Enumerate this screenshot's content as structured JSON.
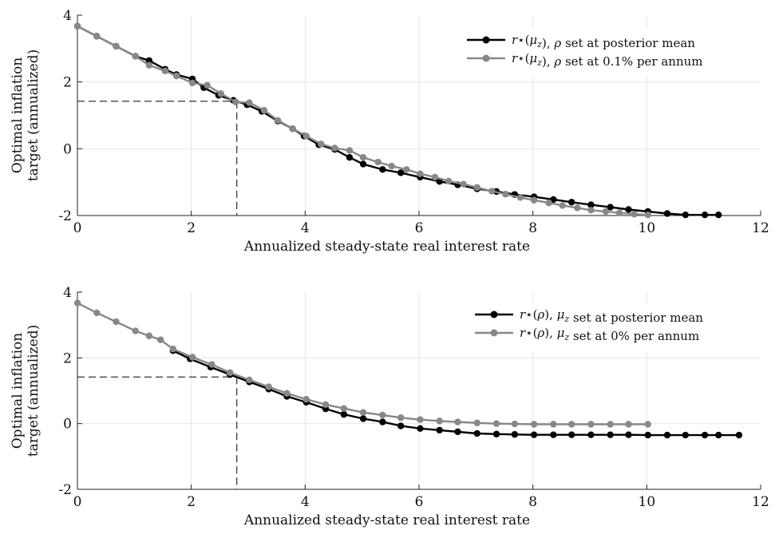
{
  "chart_data": [
    {
      "type": "line",
      "xlabel": "Annualized steady-state real interest rate",
      "ylabel": [
        "Optimal inflation",
        "target (annualized)"
      ],
      "xlim": [
        0,
        12
      ],
      "ylim": [
        -2,
        4
      ],
      "xticks": [
        0,
        2,
        4,
        6,
        8,
        10,
        12
      ],
      "yticks": [
        -2,
        0,
        2,
        4
      ],
      "xtick_labels": [
        "0",
        "2",
        "4",
        "6",
        "8",
        "10",
        "12"
      ],
      "ytick_labels": [
        "-2",
        "0",
        "2",
        "4"
      ],
      "grid": true,
      "legend_position": "top-right",
      "reference_point": {
        "x": 2.8,
        "y": 1.42
      },
      "series": [
        {
          "name": "r⋆(μz), ρ set at posterior mean",
          "color": "#000000",
          "x": [
            0,
            0.34,
            0.68,
            1.02,
            1.26,
            1.54,
            1.74,
            2.02,
            2.22,
            2.48,
            2.74,
            2.98,
            3.24,
            3.52,
            3.78,
            3.98,
            4.24,
            4.52,
            4.78,
            5.02,
            5.36,
            5.68,
            6.02,
            6.36,
            6.68,
            7.02,
            7.36,
            7.68,
            8.02,
            8.36,
            8.68,
            9.02,
            9.36,
            9.68,
            10.02,
            10.36,
            10.68,
            11.02,
            11.26
          ],
          "y": [
            3.67,
            3.37,
            3.07,
            2.77,
            2.64,
            2.38,
            2.22,
            2.09,
            1.83,
            1.6,
            1.45,
            1.32,
            1.12,
            0.83,
            0.6,
            0.38,
            0.12,
            -0.02,
            -0.26,
            -0.46,
            -0.62,
            -0.72,
            -0.85,
            -0.98,
            -1.08,
            -1.2,
            -1.28,
            -1.37,
            -1.44,
            -1.52,
            -1.6,
            -1.68,
            -1.75,
            -1.82,
            -1.88,
            -1.94,
            -1.98,
            -1.98,
            -1.98
          ]
        },
        {
          "name": "r⋆(μz), ρ set at 0.1% per annum",
          "color": "#888888",
          "x": [
            0,
            0.34,
            0.68,
            1.02,
            1.26,
            1.54,
            1.74,
            2.02,
            2.28,
            2.52,
            2.78,
            3.02,
            3.28,
            3.52,
            3.78,
            4.02,
            4.28,
            4.52,
            4.78,
            5.02,
            5.28,
            5.52,
            5.78,
            6.02,
            6.28,
            6.52,
            6.78,
            7.02,
            7.28,
            7.52,
            7.78,
            8.02,
            8.28,
            8.52,
            8.78,
            9.02,
            9.28,
            9.52,
            9.78,
            10.02
          ],
          "y": [
            3.67,
            3.37,
            3.07,
            2.77,
            2.5,
            2.33,
            2.18,
            1.97,
            1.9,
            1.65,
            1.4,
            1.38,
            1.15,
            0.85,
            0.6,
            0.38,
            0.14,
            0.02,
            -0.05,
            -0.26,
            -0.4,
            -0.52,
            -0.62,
            -0.75,
            -0.85,
            -0.97,
            -1.06,
            -1.16,
            -1.27,
            -1.36,
            -1.46,
            -1.54,
            -1.62,
            -1.7,
            -1.77,
            -1.84,
            -1.88,
            -1.92,
            -1.96,
            -1.98
          ]
        }
      ]
    },
    {
      "type": "line",
      "xlabel": "Annualized steady-state real interest rate",
      "ylabel": [
        "Optimal inflation",
        "target (annualized)"
      ],
      "xlim": [
        0,
        12
      ],
      "ylim": [
        -2,
        4
      ],
      "xticks": [
        0,
        2,
        4,
        6,
        8,
        10,
        12
      ],
      "yticks": [
        -2,
        0,
        2,
        4
      ],
      "xtick_labels": [
        "0",
        "2",
        "4",
        "6",
        "8",
        "10",
        "12"
      ],
      "ytick_labels": [
        "-2",
        "0",
        "2",
        "4"
      ],
      "grid": true,
      "legend_position": "top-right",
      "reference_point": {
        "x": 2.8,
        "y": 1.42
      },
      "series": [
        {
          "name": "r⋆(ρ), μz set at posterior mean",
          "color": "#000000",
          "x": [
            1.68,
            1.98,
            2.34,
            2.68,
            3.02,
            3.36,
            3.68,
            4.02,
            4.36,
            4.68,
            5.02,
            5.36,
            5.68,
            6.02,
            6.36,
            6.68,
            7.02,
            7.36,
            7.68,
            8.02,
            8.36,
            8.68,
            9.02,
            9.36,
            9.68,
            10.02,
            10.36,
            10.68,
            11.02,
            11.26,
            11.62
          ],
          "y": [
            2.22,
            1.97,
            1.72,
            1.49,
            1.27,
            1.05,
            0.83,
            0.65,
            0.45,
            0.28,
            0.15,
            0.05,
            -0.07,
            -0.15,
            -0.2,
            -0.25,
            -0.3,
            -0.32,
            -0.33,
            -0.34,
            -0.34,
            -0.34,
            -0.34,
            -0.34,
            -0.34,
            -0.35,
            -0.35,
            -0.35,
            -0.35,
            -0.35,
            -0.35
          ]
        },
        {
          "name": "r⋆(ρ), μz set at 0% per annum",
          "color": "#888888",
          "x": [
            0,
            0.34,
            0.68,
            1.02,
            1.26,
            1.46,
            1.68,
            2.02,
            2.36,
            2.68,
            3.02,
            3.36,
            3.68,
            4.02,
            4.36,
            4.68,
            5.02,
            5.36,
            5.68,
            6.02,
            6.36,
            6.68,
            7.02,
            7.36,
            7.68,
            8.02,
            8.36,
            8.68,
            9.02,
            9.36,
            9.68,
            10.02
          ],
          "y": [
            3.67,
            3.37,
            3.1,
            2.82,
            2.67,
            2.55,
            2.27,
            2.02,
            1.8,
            1.55,
            1.33,
            1.12,
            0.92,
            0.74,
            0.58,
            0.46,
            0.34,
            0.26,
            0.18,
            0.12,
            0.08,
            0.05,
            0.02,
            0.0,
            -0.01,
            -0.02,
            -0.02,
            -0.02,
            -0.02,
            -0.02,
            -0.02,
            -0.02
          ]
        }
      ]
    }
  ]
}
